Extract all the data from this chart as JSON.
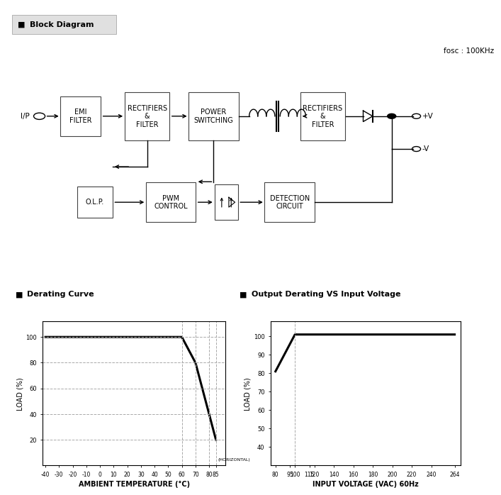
{
  "title_block": "Block Diagram",
  "fosc_label": "fosc : 100KHz",
  "bg_color": "#ffffff",
  "derating_curve": {
    "title": "Derating Curve",
    "xlabel": "AMBIENT TEMPERATURE (°C)",
    "ylabel": "LOAD (%)",
    "xlim": [
      -42,
      92
    ],
    "ylim": [
      0,
      112
    ],
    "yticks": [
      20,
      40,
      60,
      80,
      100
    ],
    "xticks": [
      -40,
      -30,
      -20,
      -10,
      0,
      10,
      20,
      30,
      40,
      50,
      60,
      70,
      80,
      85
    ],
    "line_x": [
      -40,
      60,
      70,
      80,
      85
    ],
    "line_y": [
      100,
      100,
      80,
      40,
      20
    ],
    "vlines": [
      60,
      70,
      80,
      85
    ],
    "hlines": [
      20,
      40,
      60,
      80,
      100
    ]
  },
  "output_derating": {
    "title": "Output Derating VS Input Voltage",
    "xlabel": "INPUT VOLTAGE (VAC) 60Hz",
    "ylabel": "LOAD (%)",
    "xlim": [
      75,
      270
    ],
    "ylim": [
      30,
      108
    ],
    "yticks": [
      40,
      50,
      60,
      70,
      80,
      90,
      100
    ],
    "xticks": [
      80,
      95,
      100,
      115,
      120,
      140,
      160,
      180,
      200,
      220,
      240,
      264
    ],
    "line_x": [
      80,
      100,
      264
    ],
    "line_y": [
      81,
      101,
      101
    ],
    "vlines": [
      100
    ],
    "hlines": []
  }
}
